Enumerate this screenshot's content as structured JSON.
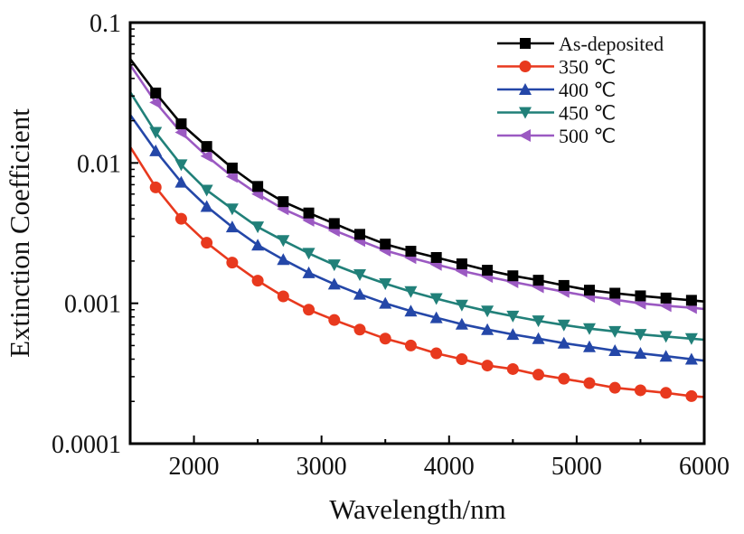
{
  "chart_data": {
    "type": "line",
    "title": "",
    "xlabel": "Wavelength/nm",
    "ylabel": "Extinction Coefficient",
    "xlim": [
      1500,
      6000
    ],
    "ylim": [
      0.0001,
      0.1
    ],
    "yscale": "log",
    "grid": false,
    "legend_position": "top-right",
    "x_ticks": [
      2000,
      3000,
      4000,
      5000,
      6000
    ],
    "x_tick_labels": [
      "2000",
      "3000",
      "4000",
      "5000",
      "6000"
    ],
    "y_ticks": [
      0.0001,
      0.001,
      0.01,
      0.1
    ],
    "y_tick_labels": [
      "0.0001",
      "0.001",
      "0.01",
      "0.1"
    ],
    "x": [
      1500,
      1700,
      1900,
      2100,
      2300,
      2500,
      2700,
      2900,
      3100,
      3300,
      3500,
      3700,
      3900,
      4100,
      4300,
      4500,
      4700,
      4900,
      5100,
      5300,
      5500,
      5700,
      5900,
      6000
    ],
    "series": [
      {
        "name": "As-deposited",
        "color": "#000000",
        "marker": "square",
        "values": [
          0.055,
          0.0315,
          0.019,
          0.0131,
          0.0092,
          0.0068,
          0.0053,
          0.0044,
          0.0037,
          0.0031,
          0.00264,
          0.00235,
          0.00212,
          0.00191,
          0.00172,
          0.00157,
          0.00146,
          0.00134,
          0.00124,
          0.00118,
          0.00113,
          0.00109,
          0.00105,
          0.00103
        ]
      },
      {
        "name": "350 ℃",
        "color": "#e8391e",
        "marker": "circle",
        "values": [
          0.013,
          0.0067,
          0.004,
          0.0027,
          0.00195,
          0.00145,
          0.00112,
          0.0009,
          0.00076,
          0.00065,
          0.00056,
          0.0005,
          0.00044,
          0.0004,
          0.00036,
          0.00034,
          0.00031,
          0.00029,
          0.00027,
          0.00025,
          0.00024,
          0.00023,
          0.000218,
          0.000215
        ]
      },
      {
        "name": "400 ℃",
        "color": "#2447a8",
        "marker": "triangle-up",
        "values": [
          0.022,
          0.0122,
          0.0073,
          0.0049,
          0.0035,
          0.0026,
          0.00205,
          0.00165,
          0.00137,
          0.00116,
          0.001,
          0.00088,
          0.00079,
          0.00071,
          0.00065,
          0.0006,
          0.00056,
          0.00052,
          0.00049,
          0.00046,
          0.00044,
          0.00042,
          0.0004,
          0.00039
        ]
      },
      {
        "name": "450 ℃",
        "color": "#218079",
        "marker": "triangle-down",
        "values": [
          0.032,
          0.0165,
          0.0097,
          0.0064,
          0.0047,
          0.0035,
          0.0028,
          0.00227,
          0.00188,
          0.0016,
          0.00138,
          0.00121,
          0.00108,
          0.00097,
          0.00088,
          0.00081,
          0.00075,
          0.0007,
          0.00066,
          0.00063,
          0.0006,
          0.00058,
          0.00056,
          0.00055
        ]
      },
      {
        "name": "500 ℃",
        "color": "#9b59c2",
        "marker": "triangle-left",
        "values": [
          0.05,
          0.027,
          0.0165,
          0.0112,
          0.008,
          0.006,
          0.0047,
          0.0039,
          0.0033,
          0.0028,
          0.00238,
          0.00211,
          0.00189,
          0.0017,
          0.00155,
          0.00142,
          0.00131,
          0.00121,
          0.00112,
          0.00106,
          0.001,
          0.00096,
          0.00093,
          0.00091
        ]
      }
    ]
  }
}
